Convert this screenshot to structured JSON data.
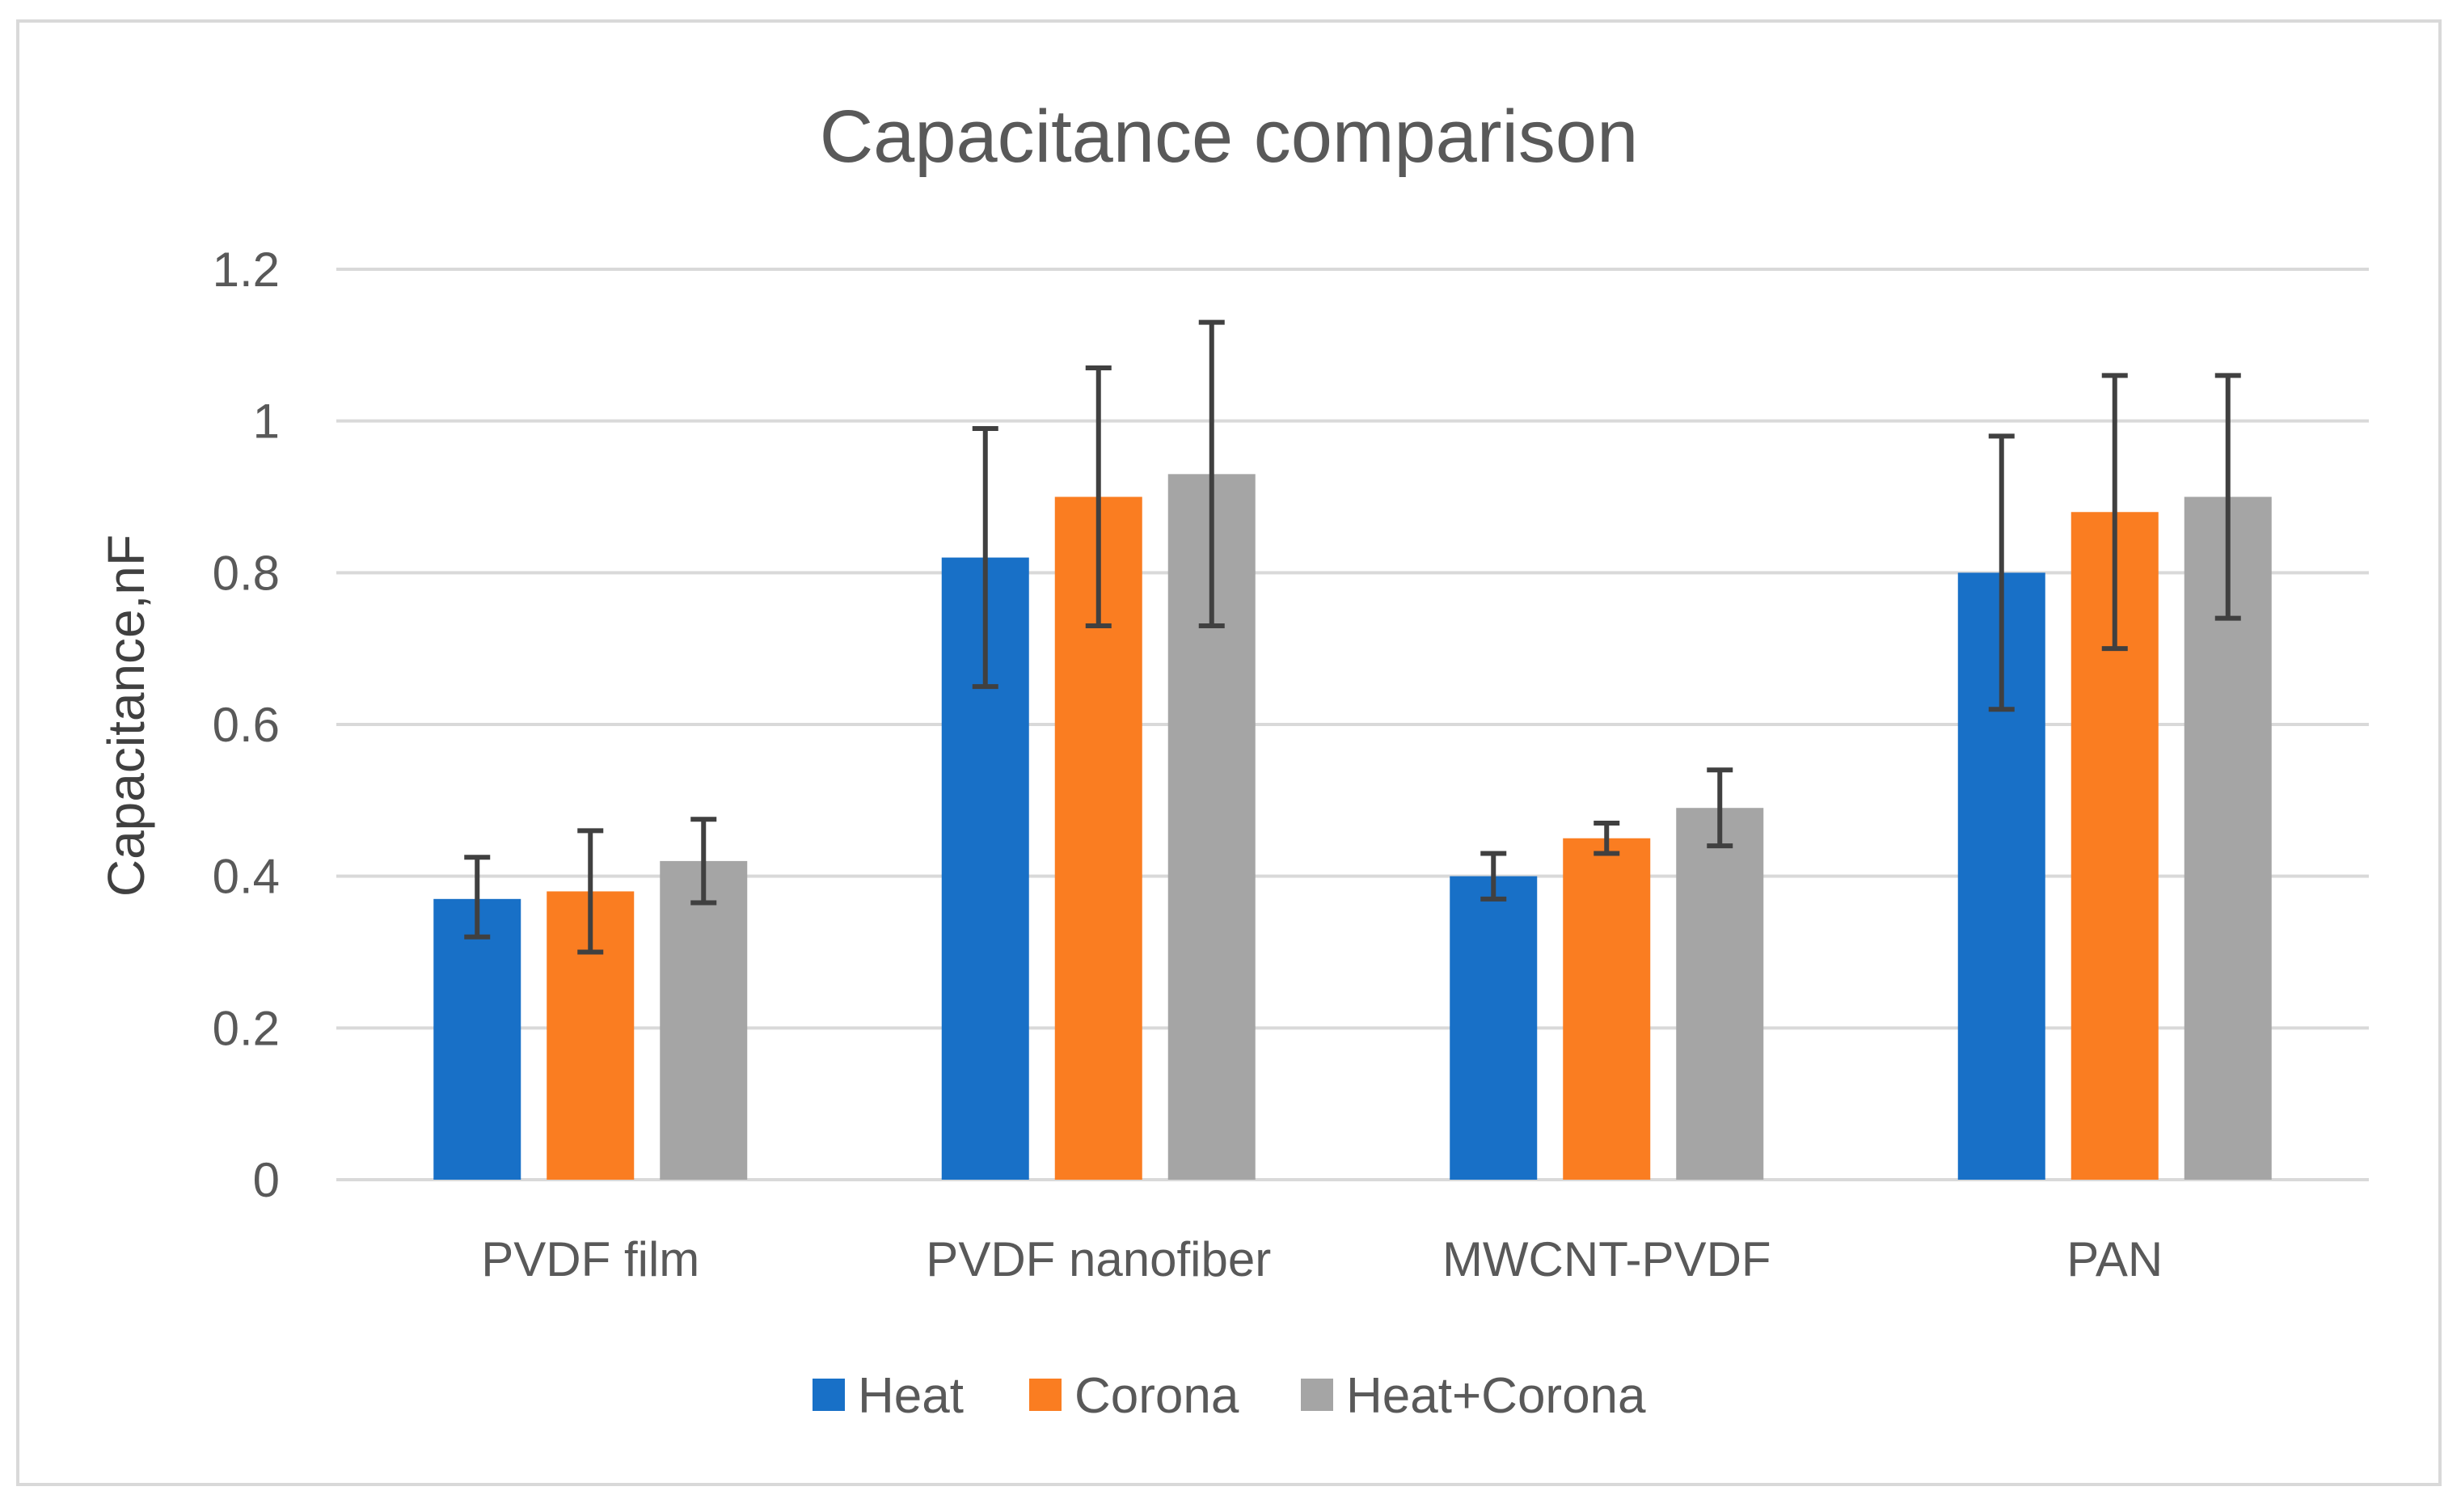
{
  "chart_data": {
    "type": "bar",
    "title": "Capacitance comparison",
    "xlabel": "",
    "ylabel": "Capacitance,nF",
    "ylim": [
      0,
      1.2
    ],
    "yticks": [
      0,
      0.2,
      0.4,
      0.6,
      0.8,
      1,
      1.2
    ],
    "ytick_labels": [
      "0",
      "0.2",
      "0.4",
      "0.6",
      "0.8",
      "1",
      "1.2"
    ],
    "grid": true,
    "legend_position": "bottom",
    "categories": [
      "PVDF film",
      "PVDF nanofiber",
      "MWCNT-PVDF",
      "PAN"
    ],
    "series": [
      {
        "name": "Heat",
        "color": "#1870c7",
        "values": [
          0.37,
          0.82,
          0.4,
          0.8
        ],
        "error_low": [
          0.32,
          0.65,
          0.37,
          0.62
        ],
        "error_high": [
          0.425,
          0.99,
          0.43,
          0.98
        ]
      },
      {
        "name": "Corona",
        "color": "#fa7d21",
        "values": [
          0.38,
          0.9,
          0.45,
          0.88
        ],
        "error_low": [
          0.3,
          0.73,
          0.43,
          0.7
        ],
        "error_high": [
          0.46,
          1.07,
          0.47,
          1.06
        ]
      },
      {
        "name": "Heat+Corona",
        "color": "#a5a5a5",
        "values": [
          0.42,
          0.93,
          0.49,
          0.9
        ],
        "error_low": [
          0.365,
          0.73,
          0.44,
          0.74
        ],
        "error_high": [
          0.475,
          1.13,
          0.54,
          1.06
        ]
      }
    ],
    "colors": {
      "gridline": "#d9d9d9",
      "errorbar": "#404040",
      "frame": "#d9d9d9"
    }
  }
}
